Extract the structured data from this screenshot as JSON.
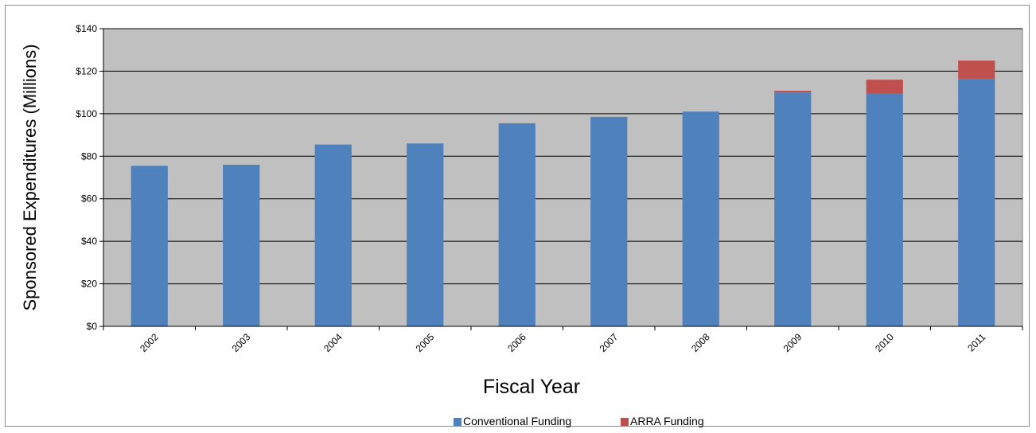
{
  "chart_data": {
    "type": "bar",
    "stacked": true,
    "categories": [
      "2002",
      "2003",
      "2004",
      "2005",
      "2006",
      "2007",
      "2008",
      "2009",
      "2010",
      "2011"
    ],
    "series": [
      {
        "name": "Conventional Funding",
        "color": "#4f81bd",
        "values": [
          75.5,
          76,
          85.5,
          86,
          95.5,
          98.5,
          101,
          110,
          109.5,
          116.5
        ]
      },
      {
        "name": "ARRA Funding",
        "color": "#c0504d",
        "values": [
          0,
          0,
          0,
          0,
          0,
          0,
          0,
          0.8,
          6.5,
          8.5
        ]
      }
    ],
    "xlabel": "Fiscal Year",
    "ylabel": "Sponsored Expenditures (Millions)",
    "ylim": [
      0,
      140
    ],
    "yticks": [
      0,
      20,
      40,
      60,
      80,
      100,
      120,
      140
    ],
    "ytick_labels": [
      "$0",
      "$20",
      "$40",
      "$60",
      "$80",
      "$100",
      "$120",
      "$140"
    ],
    "grid": true,
    "plot_background": "#c0c0c0",
    "legend_position": "bottom"
  }
}
